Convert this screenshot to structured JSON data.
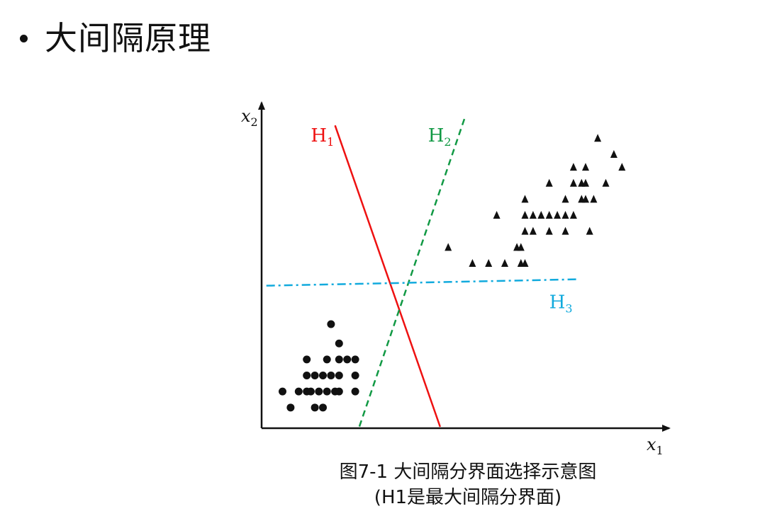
{
  "slide": {
    "title": "大间隔原理"
  },
  "caption": {
    "line1": "图7-1 大间隔分界面选择示意图",
    "line2": "(H1是最大间隔分界面)"
  },
  "chart_data": {
    "type": "scatter",
    "title": "",
    "xlabel": "x1",
    "ylabel": "x2",
    "xlim": [
      0,
      100
    ],
    "ylim": [
      0,
      100
    ],
    "grid": false,
    "series": [
      {
        "marker": "circle",
        "points": [
          [
            17,
            32
          ],
          [
            19,
            26
          ],
          [
            11,
            21
          ],
          [
            16,
            21
          ],
          [
            19,
            21
          ],
          [
            21,
            21
          ],
          [
            23,
            21
          ],
          [
            11,
            16
          ],
          [
            13,
            16
          ],
          [
            15,
            16
          ],
          [
            17,
            16
          ],
          [
            19,
            16
          ],
          [
            23,
            16
          ],
          [
            5,
            11
          ],
          [
            9,
            11
          ],
          [
            11,
            11
          ],
          [
            12,
            11
          ],
          [
            14,
            11
          ],
          [
            16,
            11
          ],
          [
            18,
            11
          ],
          [
            19,
            11
          ],
          [
            23,
            11
          ],
          [
            7,
            6
          ],
          [
            13,
            6
          ],
          [
            15,
            6
          ]
        ]
      },
      {
        "marker": "triangle",
        "points": [
          [
            83,
            90
          ],
          [
            87,
            85
          ],
          [
            89,
            81
          ],
          [
            77,
            81
          ],
          [
            80,
            81
          ],
          [
            71,
            76
          ],
          [
            77,
            76
          ],
          [
            79,
            76
          ],
          [
            80,
            76
          ],
          [
            85,
            76
          ],
          [
            65,
            71
          ],
          [
            75,
            71
          ],
          [
            79,
            71
          ],
          [
            80,
            71
          ],
          [
            82,
            71
          ],
          [
            58,
            66
          ],
          [
            65,
            66
          ],
          [
            67,
            66
          ],
          [
            69,
            66
          ],
          [
            71,
            66
          ],
          [
            73,
            66
          ],
          [
            75,
            66
          ],
          [
            77,
            66
          ],
          [
            65,
            61
          ],
          [
            67,
            61
          ],
          [
            71,
            61
          ],
          [
            75,
            61
          ],
          [
            81,
            61
          ],
          [
            63,
            56
          ],
          [
            64,
            56
          ],
          [
            46,
            56
          ],
          [
            52,
            51
          ],
          [
            56,
            51
          ],
          [
            60,
            51
          ],
          [
            64,
            51
          ],
          [
            65,
            51
          ]
        ]
      }
    ],
    "lines": [
      {
        "name": "H1",
        "sub": "1",
        "color": "#ee1111",
        "style": "solid",
        "from": [
          18,
          94
        ],
        "to": [
          44,
          0
        ]
      },
      {
        "name": "H2",
        "sub": "2",
        "color": "#119944",
        "style": "dash",
        "from": [
          50,
          96
        ],
        "to": [
          24,
          0
        ]
      },
      {
        "name": "H3",
        "sub": "3",
        "color": "#11aadd",
        "style": "dashdot",
        "from": [
          1,
          44
        ],
        "to": [
          78,
          46
        ]
      }
    ],
    "line_labels": [
      {
        "name": "H",
        "sub": "1",
        "color": "#ee1111",
        "at": [
          12,
          89
        ]
      },
      {
        "name": "H",
        "sub": "2",
        "color": "#119944",
        "at": [
          41,
          89
        ]
      },
      {
        "name": "H",
        "sub": "3",
        "color": "#11aadd",
        "at": [
          71,
          37
        ]
      }
    ]
  }
}
